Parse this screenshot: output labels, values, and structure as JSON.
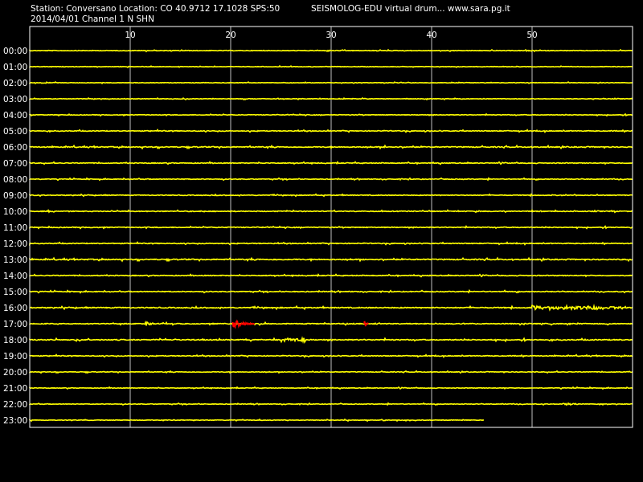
{
  "header": {
    "station_line": "Station: Conversano Location: CO 40.9712 17.1028 SPS:50",
    "date_line": "2014/04/01  Channel 1 N SHN",
    "app_line": "SEISMOLOG-EDU virtual drum... www.sara.pg.it"
  },
  "colors": {
    "background": "#000000",
    "frame": "#ffffff",
    "grid": "#c0c0c0",
    "trace": "#ffff00",
    "event": "#ff0000",
    "text": "#ffffff"
  },
  "chart_data": {
    "type": "line",
    "title": "SEISMOLOG-EDU virtual drum... www.sara.pg.it",
    "xlabel": "",
    "ylabel": "",
    "x_unit_minutes": true,
    "xlim": [
      0,
      60
    ],
    "x_ticks": [
      10,
      20,
      30,
      40,
      50
    ],
    "grid": true,
    "rows": [
      {
        "label": "00:00",
        "noise": 0.35,
        "extent": 60
      },
      {
        "label": "01:00",
        "noise": 0.3,
        "extent": 60
      },
      {
        "label": "02:00",
        "noise": 0.3,
        "extent": 60
      },
      {
        "label": "03:00",
        "noise": 0.3,
        "extent": 60
      },
      {
        "label": "04:00",
        "noise": 0.35,
        "extent": 60
      },
      {
        "label": "05:00",
        "noise": 0.45,
        "extent": 60
      },
      {
        "label": "06:00",
        "noise": 0.55,
        "extent": 60
      },
      {
        "label": "07:00",
        "noise": 0.45,
        "extent": 60
      },
      {
        "label": "08:00",
        "noise": 0.4,
        "extent": 60
      },
      {
        "label": "09:00",
        "noise": 0.4,
        "extent": 60
      },
      {
        "label": "10:00",
        "noise": 0.45,
        "extent": 60
      },
      {
        "label": "11:00",
        "noise": 0.45,
        "extent": 60
      },
      {
        "label": "12:00",
        "noise": 0.45,
        "extent": 60
      },
      {
        "label": "13:00",
        "noise": 0.6,
        "extent": 60
      },
      {
        "label": "14:00",
        "noise": 0.45,
        "extent": 60
      },
      {
        "label": "15:00",
        "noise": 0.45,
        "extent": 60
      },
      {
        "label": "16:00",
        "noise": 0.55,
        "extent": 60
      },
      {
        "label": "17:00",
        "noise": 0.5,
        "extent": 60
      },
      {
        "label": "18:00",
        "noise": 0.55,
        "extent": 60
      },
      {
        "label": "19:00",
        "noise": 0.45,
        "extent": 60
      },
      {
        "label": "20:00",
        "noise": 0.4,
        "extent": 60
      },
      {
        "label": "21:00",
        "noise": 0.35,
        "extent": 60
      },
      {
        "label": "22:00",
        "noise": 0.35,
        "extent": 60
      },
      {
        "label": "23:00",
        "noise": 0.35,
        "extent": 45.2
      }
    ],
    "bursts": [
      {
        "row": "16:00",
        "start_min": 50.0,
        "end_min": 59.0,
        "amp": 2.0
      },
      {
        "row": "17:00",
        "start_min": 11.5,
        "end_min": 12.3,
        "amp": 2.5
      },
      {
        "row": "18:00",
        "start_min": 25.0,
        "end_min": 27.5,
        "amp": 2.0
      },
      {
        "row": "06:00",
        "start_min": 35.3,
        "end_min": 35.5,
        "amp": 3.0
      },
      {
        "row": "22:00",
        "start_min": 53.0,
        "end_min": 54.5,
        "amp": 1.2
      }
    ],
    "events": [
      {
        "row": "17:00",
        "onset_min": 20.2,
        "end_min": 22.4,
        "peak_amp": 8
      },
      {
        "row": "17:00",
        "onset_min": 33.3,
        "end_min": 33.7,
        "peak_amp": 10
      }
    ]
  }
}
